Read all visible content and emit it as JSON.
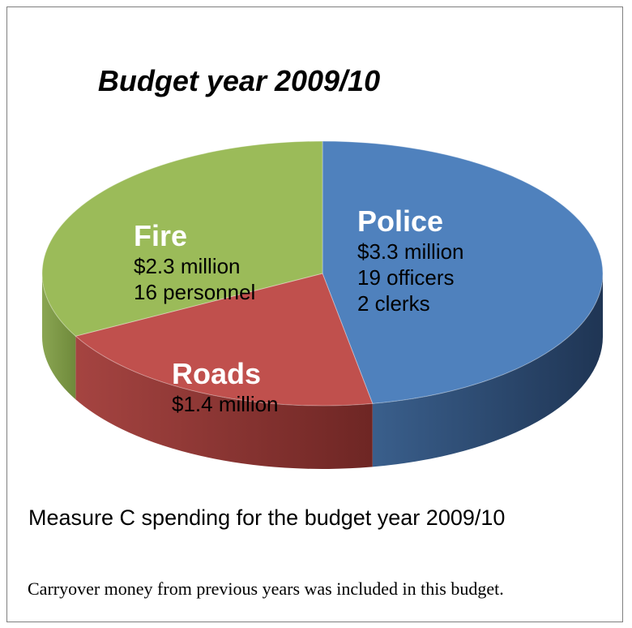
{
  "chart_data": {
    "type": "pie",
    "title": "Budget year 2009/10",
    "slices": [
      {
        "label": "Police",
        "value": 3.3,
        "lines": [
          "$3.3 million",
          "19 officers",
          "2 clerks"
        ],
        "color": "#4f81bd"
      },
      {
        "label": "Roads",
        "value": 1.4,
        "lines": [
          "$1.4 million"
        ],
        "color": "#c0504d"
      },
      {
        "label": "Fire",
        "value": 2.3,
        "lines": [
          "$2.3 million",
          "16 personnel"
        ],
        "color": "#9bbb59"
      }
    ],
    "style": "3d"
  },
  "caption": "Measure C spending for the budget year 2009/10",
  "note": "Carryover money from previous years was included in this budget."
}
